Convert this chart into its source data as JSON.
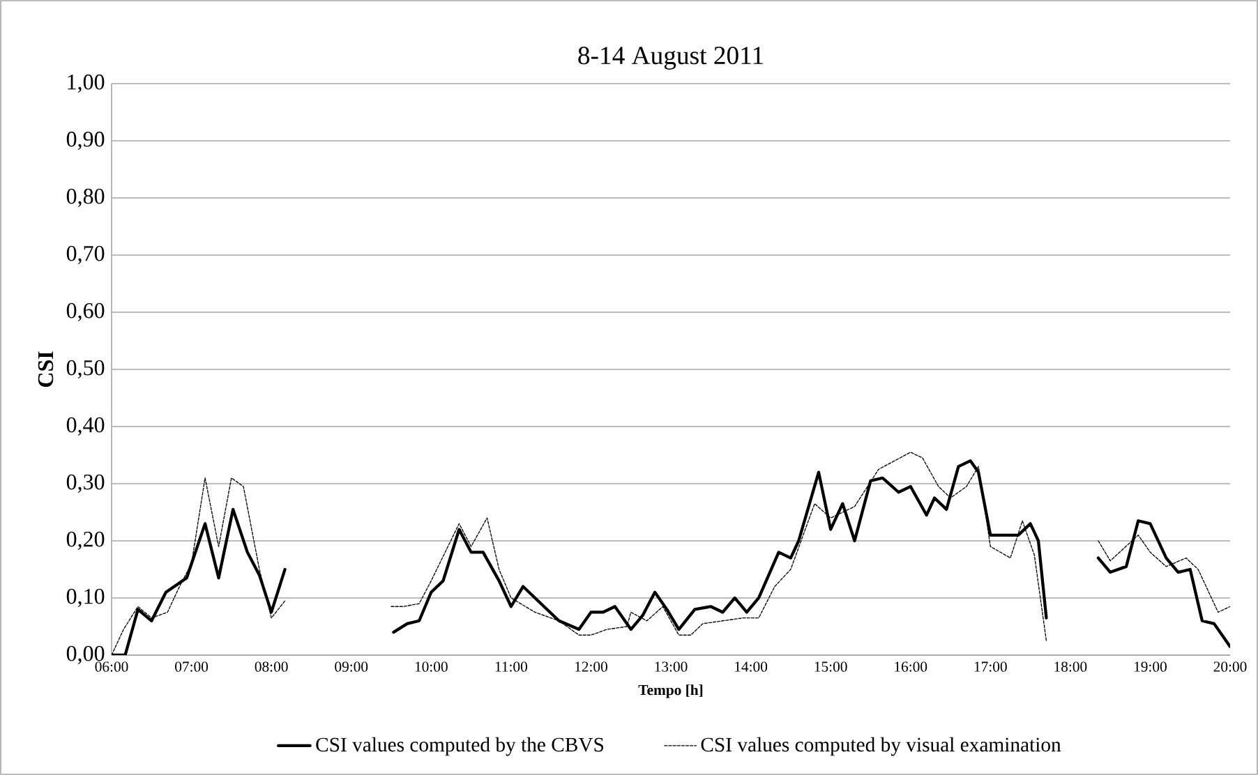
{
  "chart_data": {
    "type": "line",
    "title": "8-14 August 2011",
    "xlabel": "Tempo  [h]",
    "ylabel": "CSI",
    "xlim": [
      6,
      20
    ],
    "ylim": [
      0,
      1
    ],
    "xticks": [
      {
        "value": 6,
        "label": "06:00"
      },
      {
        "value": 7,
        "label": "07:00"
      },
      {
        "value": 8,
        "label": "08:00"
      },
      {
        "value": 9,
        "label": "09:00"
      },
      {
        "value": 10,
        "label": "10:00"
      },
      {
        "value": 11,
        "label": "11:00"
      },
      {
        "value": 12,
        "label": "12:00"
      },
      {
        "value": 13,
        "label": "13:00"
      },
      {
        "value": 14,
        "label": "14:00"
      },
      {
        "value": 15,
        "label": "15:00"
      },
      {
        "value": 16,
        "label": "16:00"
      },
      {
        "value": 17,
        "label": "17:00"
      },
      {
        "value": 18,
        "label": "18:00"
      },
      {
        "value": 19,
        "label": "19:00"
      },
      {
        "value": 20,
        "label": "20:00"
      }
    ],
    "yticks": [
      {
        "value": 0,
        "label": "0,00"
      },
      {
        "value": 0.1,
        "label": "0,10"
      },
      {
        "value": 0.2,
        "label": "0,20"
      },
      {
        "value": 0.3,
        "label": "0,30"
      },
      {
        "value": 0.4,
        "label": "0,40"
      },
      {
        "value": 0.5,
        "label": "0,50"
      },
      {
        "value": 0.6,
        "label": "0,60"
      },
      {
        "value": 0.7,
        "label": "0,70"
      },
      {
        "value": 0.8,
        "label": "0,80"
      },
      {
        "value": 0.9,
        "label": "0,90"
      },
      {
        "value": 1,
        "label": "1,00"
      }
    ],
    "grid": "y",
    "legend": "bottom",
    "marker": "none",
    "series": [
      {
        "name": "CSI values computed by the CBVS",
        "color": "#000000",
        "line_style": "solid",
        "x": [
          6.0,
          6.17,
          6.33,
          6.5,
          6.68,
          6.94,
          7.17,
          7.34,
          7.52,
          7.7,
          7.85,
          8.0,
          8.17,
          9.0,
          9.53,
          9.7,
          9.85,
          10.0,
          10.15,
          10.35,
          10.5,
          10.65,
          10.85,
          11.0,
          11.15,
          11.3,
          11.6,
          11.85,
          12.0,
          12.15,
          12.3,
          12.5,
          12.65,
          12.8,
          12.95,
          13.1,
          13.3,
          13.5,
          13.65,
          13.8,
          13.95,
          14.1,
          14.35,
          14.5,
          14.6,
          14.85,
          15.0,
          15.15,
          15.3,
          15.5,
          15.65,
          15.85,
          16.0,
          16.2,
          16.3,
          16.45,
          16.6,
          16.75,
          16.85,
          17.0,
          17.2,
          17.35,
          17.5,
          17.6,
          17.7,
          18.0,
          18.35,
          18.5,
          18.7,
          18.85,
          19.0,
          19.2,
          19.35,
          19.5,
          19.65,
          19.8,
          20.0
        ],
        "values": [
          0.0,
          0.0,
          0.08,
          0.06,
          0.11,
          0.135,
          0.23,
          0.135,
          0.255,
          0.18,
          0.14,
          0.075,
          0.15,
          null,
          0.04,
          0.055,
          0.06,
          0.11,
          0.13,
          0.22,
          0.18,
          0.18,
          0.13,
          0.085,
          0.12,
          0.1,
          0.06,
          0.045,
          0.075,
          0.075,
          0.085,
          0.045,
          0.07,
          0.11,
          0.08,
          0.045,
          0.08,
          0.085,
          0.075,
          0.1,
          0.075,
          0.1,
          0.18,
          0.17,
          0.2,
          0.32,
          0.22,
          0.265,
          0.2,
          0.305,
          0.31,
          0.285,
          0.295,
          0.245,
          0.275,
          0.255,
          0.33,
          0.34,
          0.32,
          0.21,
          0.21,
          0.21,
          0.23,
          0.2,
          0.065,
          null,
          0.17,
          0.145,
          0.155,
          0.235,
          0.23,
          0.17,
          0.145,
          0.15,
          0.06,
          0.055,
          0.015
        ]
      },
      {
        "name": "CSI values computed by visual examination",
        "color": "#000000",
        "line_style": "dashed",
        "x": [
          6.0,
          6.15,
          6.33,
          6.5,
          6.7,
          6.85,
          7.0,
          7.17,
          7.34,
          7.5,
          7.65,
          7.85,
          8.0,
          8.17,
          9.0,
          9.5,
          9.65,
          9.85,
          10.0,
          10.35,
          10.5,
          10.7,
          10.85,
          11.0,
          11.3,
          11.6,
          11.85,
          12.0,
          12.2,
          12.45,
          12.5,
          12.7,
          12.9,
          13.1,
          13.25,
          13.4,
          13.65,
          13.9,
          14.1,
          14.3,
          14.5,
          14.8,
          15.0,
          15.3,
          15.6,
          16.0,
          16.15,
          16.35,
          16.5,
          16.7,
          16.85,
          17.0,
          17.25,
          17.4,
          17.55,
          17.7,
          18.0,
          18.35,
          18.5,
          18.85,
          19.0,
          19.2,
          19.45,
          19.6,
          19.85,
          20.0
        ],
        "values": [
          0.0,
          0.045,
          0.085,
          0.065,
          0.075,
          0.12,
          0.16,
          0.31,
          0.19,
          0.31,
          0.295,
          0.15,
          0.065,
          0.095,
          null,
          0.085,
          0.085,
          0.09,
          0.13,
          0.23,
          0.19,
          0.24,
          0.15,
          0.1,
          0.075,
          0.06,
          0.035,
          0.035,
          0.045,
          0.05,
          0.075,
          0.06,
          0.085,
          0.035,
          0.035,
          0.055,
          0.06,
          0.065,
          0.065,
          0.12,
          0.15,
          0.265,
          0.24,
          0.26,
          0.325,
          0.355,
          0.345,
          0.295,
          0.275,
          0.295,
          0.33,
          0.19,
          0.17,
          0.235,
          0.175,
          0.025,
          null,
          0.2,
          0.165,
          0.21,
          0.18,
          0.155,
          0.17,
          0.15,
          0.075,
          0.085
        ]
      }
    ]
  }
}
